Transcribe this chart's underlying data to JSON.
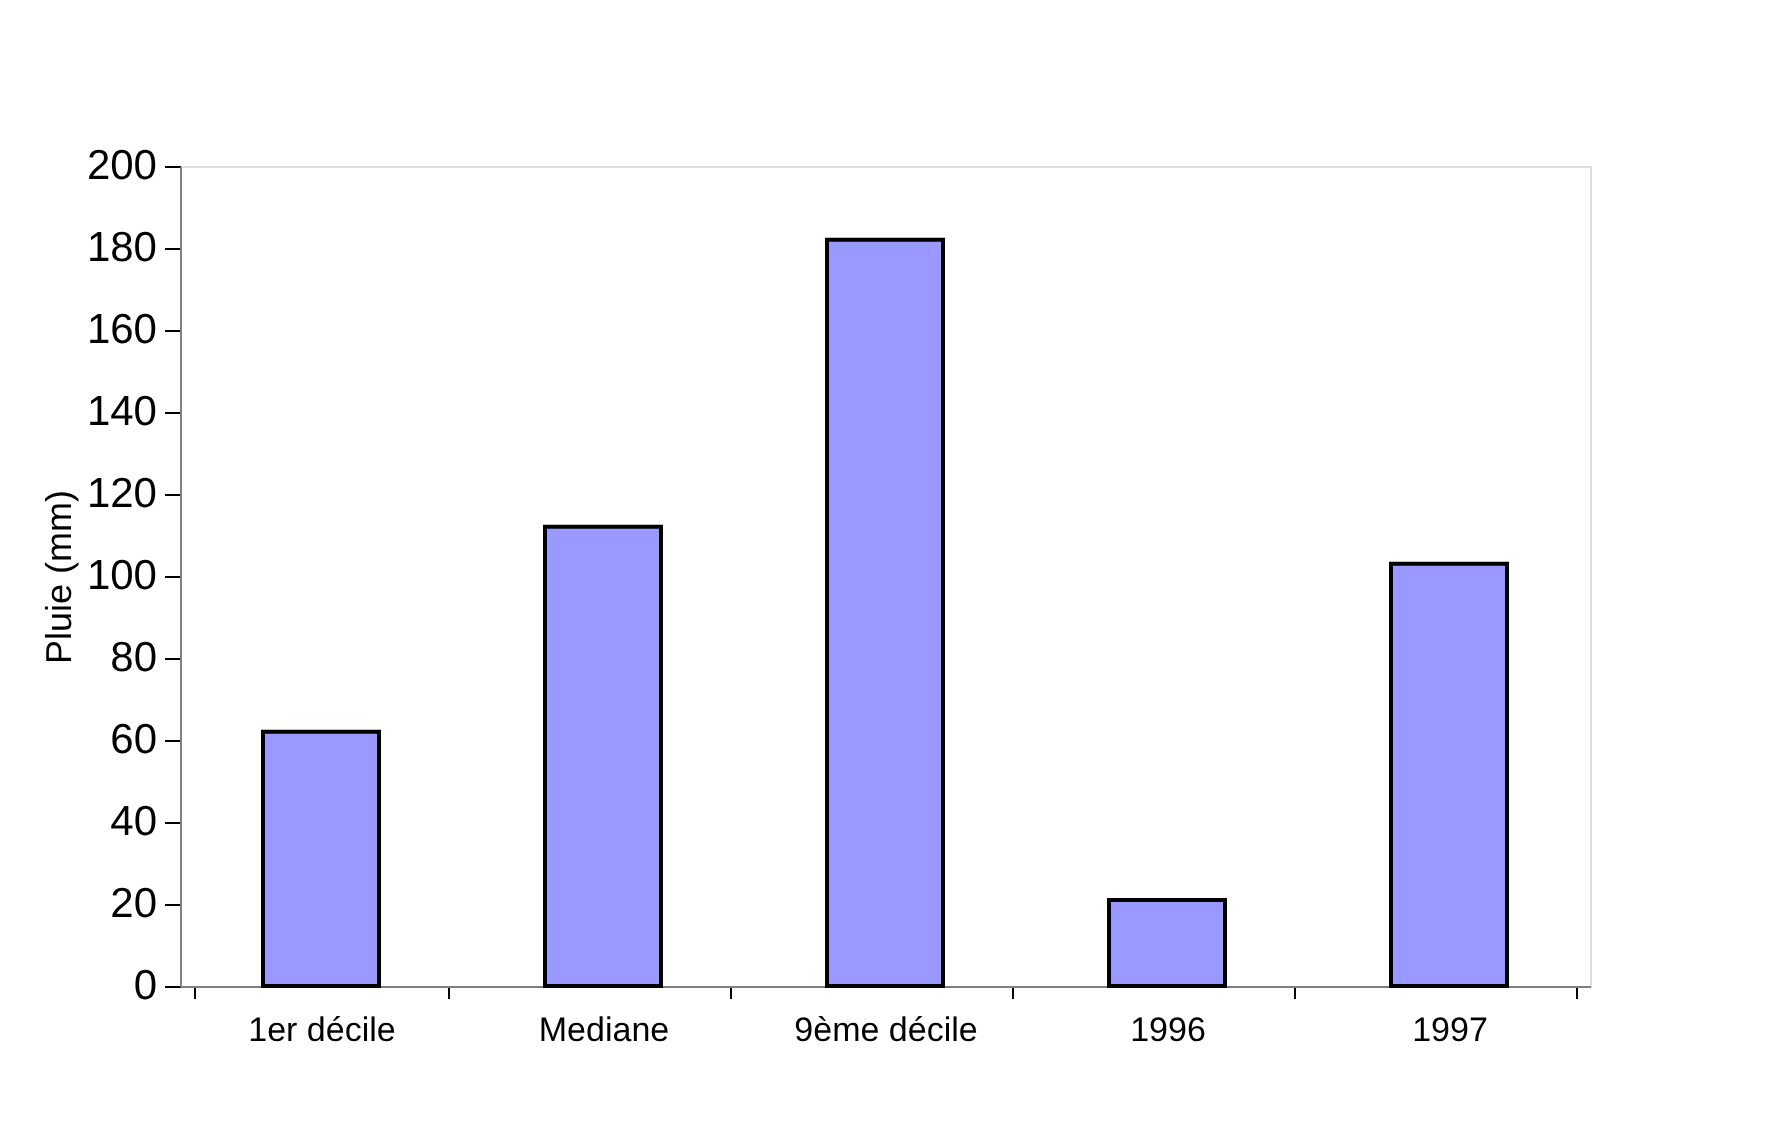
{
  "chart_data": {
    "type": "bar",
    "ylabel": "Pluie (mm)",
    "categories": [
      "1er décile",
      "Mediane",
      "9ème décile",
      "1996",
      "1997"
    ],
    "values": [
      62,
      112,
      182,
      21,
      103
    ],
    "color": "#9999ff",
    "ylim": [
      0,
      200
    ],
    "yticks": [
      0,
      20,
      40,
      60,
      80,
      100,
      120,
      140,
      160,
      180,
      200
    ],
    "grid": false
  }
}
